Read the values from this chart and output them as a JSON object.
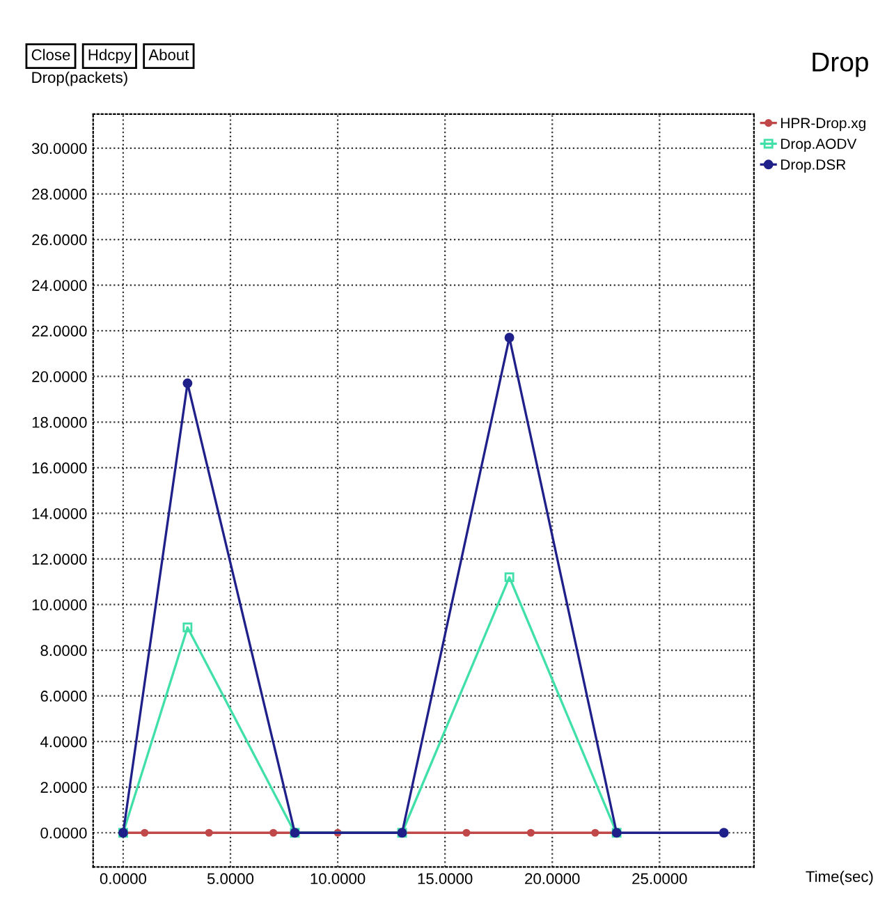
{
  "chart_data": {
    "type": "line",
    "title": "Drop",
    "ylabel": "Drop(packets)",
    "xlabel": "Time(sec)",
    "annotations": [
      "Close",
      "Hdcpy",
      "About"
    ],
    "series": [
      {
        "name": "HPR-Drop.xg",
        "color": "#c04848",
        "marker": "circle",
        "x": [
          0,
          1,
          4,
          7,
          10,
          13,
          16,
          19,
          22,
          23
        ],
        "values": [
          0,
          0,
          0,
          0,
          0,
          0,
          0,
          0,
          0,
          0
        ]
      },
      {
        "name": "Drop.AODV",
        "color": "#40e0a8",
        "marker": "square",
        "x": [
          0,
          3,
          8,
          13,
          18,
          23
        ],
        "values": [
          0,
          9.0,
          0,
          0,
          11.2,
          0
        ]
      },
      {
        "name": "Drop.DSR",
        "color": "#20208a",
        "marker": "circle",
        "x": [
          0,
          3,
          8,
          13,
          18,
          23,
          28
        ],
        "values": [
          0,
          19.7,
          0,
          0,
          21.7,
          0,
          0
        ]
      }
    ],
    "xlim": [
      -1.4,
      29.4
    ],
    "ylim": [
      -1.5,
      31.5
    ],
    "xticks": [
      {
        "value": 0,
        "label": "0.0000"
      },
      {
        "value": 5,
        "label": "5.0000"
      },
      {
        "value": 10,
        "label": "10.0000"
      },
      {
        "value": 15,
        "label": "15.0000"
      },
      {
        "value": 20,
        "label": "20.0000"
      },
      {
        "value": 25,
        "label": "25.0000"
      }
    ],
    "yticks": [
      {
        "value": 0,
        "label": "0.0000"
      },
      {
        "value": 2,
        "label": "2.0000"
      },
      {
        "value": 4,
        "label": "4.0000"
      },
      {
        "value": 6,
        "label": "6.0000"
      },
      {
        "value": 8,
        "label": "8.0000"
      },
      {
        "value": 10,
        "label": "10.0000"
      },
      {
        "value": 12,
        "label": "12.0000"
      },
      {
        "value": 14,
        "label": "14.0000"
      },
      {
        "value": 16,
        "label": "16.0000"
      },
      {
        "value": 18,
        "label": "18.0000"
      },
      {
        "value": 20,
        "label": "20.0000"
      },
      {
        "value": 22,
        "label": "22.0000"
      },
      {
        "value": 24,
        "label": "24.0000"
      },
      {
        "value": 26,
        "label": "26.0000"
      },
      {
        "value": 28,
        "label": "28.0000"
      },
      {
        "value": 30,
        "label": "30.0000"
      }
    ],
    "grid": true,
    "legend": "right",
    "line_style": "solid"
  }
}
